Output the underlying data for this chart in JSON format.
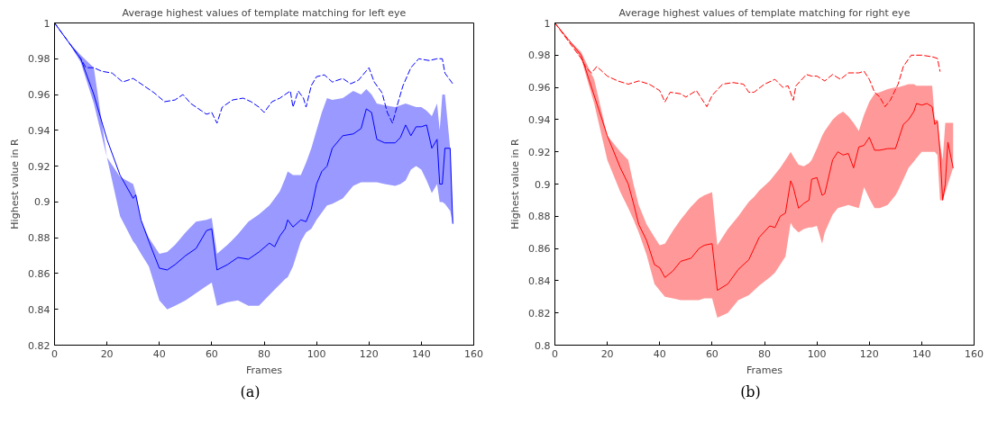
{
  "chart_data": [
    {
      "type": "line",
      "title": "Average highest values of template matching for left eye",
      "xlabel": "Frames",
      "ylabel": "Highest value in R",
      "xlim": [
        0,
        160
      ],
      "xticks": [
        0,
        20,
        40,
        60,
        80,
        100,
        120,
        140,
        160
      ],
      "ylim": [
        0.82,
        1
      ],
      "yticks": [
        0.82,
        0.84,
        0.86,
        0.88,
        0.9,
        0.92,
        0.94,
        0.96,
        0.98,
        1
      ],
      "grid": false,
      "annotations": [
        "(a)"
      ],
      "series": [
        {
          "color": "#0000ff",
          "line_style": "solid",
          "x": [
            0,
            5,
            10,
            15,
            20,
            25,
            30,
            31,
            33,
            36,
            40,
            43,
            46,
            50,
            54,
            58,
            60,
            62,
            66,
            70,
            74,
            78,
            82,
            84,
            86,
            88,
            89,
            91,
            94,
            96,
            98,
            100,
            102,
            104,
            106,
            110,
            114,
            117,
            119,
            121,
            123,
            126,
            130,
            132,
            134,
            136,
            138,
            140,
            142,
            144,
            146,
            147,
            148,
            149,
            151,
            152
          ],
          "values": [
            1,
            0.99,
            0.98,
            0.96,
            0.935,
            0.915,
            0.902,
            0.904,
            0.89,
            0.878,
            0.863,
            0.862,
            0.865,
            0.87,
            0.874,
            0.884,
            0.885,
            0.862,
            0.865,
            0.869,
            0.868,
            0.872,
            0.877,
            0.875,
            0.881,
            0.885,
            0.89,
            0.886,
            0.89,
            0.889,
            0.896,
            0.91,
            0.917,
            0.92,
            0.93,
            0.937,
            0.938,
            0.941,
            0.952,
            0.95,
            0.935,
            0.933,
            0.933,
            0.936,
            0.943,
            0.937,
            0.942,
            0.942,
            0.943,
            0.93,
            0.935,
            0.91,
            0.91,
            0.93,
            0.93,
            0.888
          ],
          "upper": [
            1,
            0.99,
            0.982,
            0.975,
            0.925,
            0.914,
            0.91,
            0.905,
            0.89,
            0.88,
            0.871,
            0.872,
            0.876,
            0.883,
            0.889,
            0.89,
            0.891,
            0.871,
            0.876,
            0.882,
            0.889,
            0.893,
            0.898,
            0.902,
            0.906,
            0.913,
            0.917,
            0.915,
            0.915,
            0.922,
            0.93,
            0.94,
            0.95,
            0.958,
            0.957,
            0.958,
            0.962,
            0.96,
            0.963,
            0.96,
            0.955,
            0.954,
            0.953,
            0.954,
            0.955,
            0.954,
            0.953,
            0.953,
            0.951,
            0.948,
            0.955,
            0.94,
            0.96,
            0.96,
            0.93,
            0.89
          ],
          "lower": [
            1,
            0.99,
            0.978,
            0.955,
            0.925,
            0.892,
            0.878,
            0.876,
            0.871,
            0.864,
            0.845,
            0.84,
            0.842,
            0.845,
            0.849,
            0.853,
            0.855,
            0.842,
            0.844,
            0.845,
            0.842,
            0.842,
            0.848,
            0.851,
            0.854,
            0.857,
            0.858,
            0.864,
            0.878,
            0.883,
            0.885,
            0.89,
            0.894,
            0.898,
            0.899,
            0.902,
            0.909,
            0.911,
            0.911,
            0.911,
            0.911,
            0.91,
            0.909,
            0.91,
            0.912,
            0.918,
            0.92,
            0.918,
            0.912,
            0.905,
            0.91,
            0.9,
            0.9,
            0.899,
            0.895,
            0.888
          ]
        },
        {
          "color": "#0000ff",
          "line_style": "dashed",
          "x": [
            0,
            10,
            12,
            15,
            18,
            22,
            26,
            30,
            34,
            38,
            42,
            46,
            49,
            52,
            56,
            58,
            60,
            62,
            64,
            68,
            72,
            75,
            78,
            80,
            83,
            86,
            90,
            91,
            93,
            95,
            96,
            98,
            100,
            103,
            106,
            110,
            113,
            116,
            120,
            122,
            125,
            127,
            129,
            131,
            133,
            136,
            139,
            143,
            146,
            148,
            149,
            152
          ],
          "values": [
            1,
            0.98,
            0.975,
            0.975,
            0.973,
            0.972,
            0.967,
            0.969,
            0.965,
            0.961,
            0.956,
            0.957,
            0.96,
            0.955,
            0.951,
            0.949,
            0.95,
            0.944,
            0.953,
            0.957,
            0.958,
            0.956,
            0.953,
            0.95,
            0.956,
            0.958,
            0.962,
            0.953,
            0.962,
            0.958,
            0.953,
            0.965,
            0.97,
            0.971,
            0.967,
            0.969,
            0.966,
            0.968,
            0.975,
            0.967,
            0.961,
            0.95,
            0.944,
            0.955,
            0.965,
            0.975,
            0.98,
            0.979,
            0.98,
            0.98,
            0.972,
            0.966
          ]
        }
      ]
    },
    {
      "type": "line",
      "title": "Average highest values of template matching for right eye",
      "xlabel": "Frames",
      "ylabel": "Highest value in R",
      "xlim": [
        0,
        160
      ],
      "xticks": [
        0,
        20,
        40,
        60,
        80,
        100,
        120,
        140,
        160
      ],
      "ylim": [
        0.8,
        1
      ],
      "yticks": [
        0.8,
        0.82,
        0.84,
        0.86,
        0.88,
        0.9,
        0.92,
        0.94,
        0.96,
        0.98,
        1
      ],
      "grid": false,
      "annotations": [
        "(b)"
      ],
      "series": [
        {
          "color": "#ff0000",
          "line_style": "solid",
          "x": [
            0,
            5,
            10,
            15,
            20,
            25,
            28,
            30,
            32,
            35,
            38,
            40,
            42,
            45,
            48,
            52,
            55,
            57,
            60,
            62,
            66,
            70,
            74,
            76,
            78,
            82,
            84,
            86,
            88,
            90,
            91,
            93,
            95,
            97,
            98,
            100,
            102,
            103,
            106,
            108,
            110,
            112,
            114,
            116,
            118,
            120,
            122,
            124,
            127,
            130,
            131,
            133,
            135,
            137,
            138,
            140,
            142,
            144,
            145,
            146,
            147,
            148,
            149,
            150,
            152
          ],
          "values": [
            1,
            0.99,
            0.98,
            0.955,
            0.93,
            0.91,
            0.9,
            0.888,
            0.875,
            0.865,
            0.85,
            0.848,
            0.842,
            0.846,
            0.852,
            0.854,
            0.86,
            0.862,
            0.863,
            0.834,
            0.838,
            0.847,
            0.853,
            0.86,
            0.867,
            0.874,
            0.873,
            0.88,
            0.882,
            0.902,
            0.898,
            0.885,
            0.888,
            0.89,
            0.903,
            0.904,
            0.893,
            0.894,
            0.915,
            0.92,
            0.918,
            0.919,
            0.91,
            0.923,
            0.924,
            0.929,
            0.921,
            0.921,
            0.922,
            0.922,
            0.927,
            0.937,
            0.94,
            0.945,
            0.95,
            0.949,
            0.95,
            0.948,
            0.937,
            0.939,
            0.92,
            0.89,
            0.9,
            0.926,
            0.91
          ],
          "upper": [
            1,
            0.99,
            0.982,
            0.965,
            0.93,
            0.92,
            0.915,
            0.9,
            0.887,
            0.875,
            0.867,
            0.862,
            0.863,
            0.871,
            0.878,
            0.886,
            0.891,
            0.893,
            0.895,
            0.862,
            0.872,
            0.88,
            0.889,
            0.892,
            0.896,
            0.902,
            0.906,
            0.91,
            0.915,
            0.92,
            0.917,
            0.912,
            0.911,
            0.913,
            0.915,
            0.922,
            0.93,
            0.933,
            0.94,
            0.943,
            0.945,
            0.942,
            0.938,
            0.933,
            0.943,
            0.951,
            0.956,
            0.957,
            0.959,
            0.96,
            0.96,
            0.961,
            0.962,
            0.962,
            0.961,
            0.961,
            0.961,
            0.961,
            0.94,
            0.94,
            0.925,
            0.915,
            0.938,
            0.938,
            0.938
          ],
          "lower": [
            1,
            0.99,
            0.978,
            0.95,
            0.915,
            0.895,
            0.885,
            0.878,
            0.87,
            0.856,
            0.838,
            0.834,
            0.83,
            0.829,
            0.828,
            0.828,
            0.828,
            0.829,
            0.829,
            0.817,
            0.82,
            0.828,
            0.831,
            0.834,
            0.837,
            0.842,
            0.845,
            0.85,
            0.855,
            0.876,
            0.873,
            0.87,
            0.872,
            0.873,
            0.873,
            0.874,
            0.863,
            0.87,
            0.881,
            0.885,
            0.886,
            0.887,
            0.886,
            0.885,
            0.898,
            0.891,
            0.885,
            0.885,
            0.887,
            0.893,
            0.896,
            0.903,
            0.91,
            0.914,
            0.916,
            0.92,
            0.92,
            0.92,
            0.92,
            0.918,
            0.89,
            0.89,
            0.895,
            0.9,
            0.91
          ]
        },
        {
          "color": "#ff0000",
          "line_style": "dashed",
          "x": [
            0,
            10,
            12,
            14,
            16,
            20,
            24,
            28,
            32,
            36,
            40,
            42,
            44,
            48,
            50,
            54,
            58,
            60,
            64,
            68,
            72,
            74,
            76,
            80,
            84,
            87,
            89,
            91,
            92,
            96,
            98,
            100,
            103,
            106,
            109,
            112,
            116,
            118,
            120,
            122,
            124,
            126,
            128,
            131,
            133,
            136,
            140,
            144,
            146,
            147
          ],
          "values": [
            1,
            0.978,
            0.972,
            0.969,
            0.973,
            0.967,
            0.964,
            0.962,
            0.964,
            0.962,
            0.958,
            0.951,
            0.957,
            0.956,
            0.954,
            0.958,
            0.948,
            0.955,
            0.962,
            0.963,
            0.962,
            0.957,
            0.957,
            0.962,
            0.965,
            0.96,
            0.961,
            0.952,
            0.961,
            0.968,
            0.967,
            0.967,
            0.964,
            0.968,
            0.965,
            0.969,
            0.969,
            0.97,
            0.965,
            0.957,
            0.954,
            0.948,
            0.952,
            0.962,
            0.973,
            0.98,
            0.98,
            0.979,
            0.978,
            0.97
          ]
        }
      ]
    }
  ]
}
